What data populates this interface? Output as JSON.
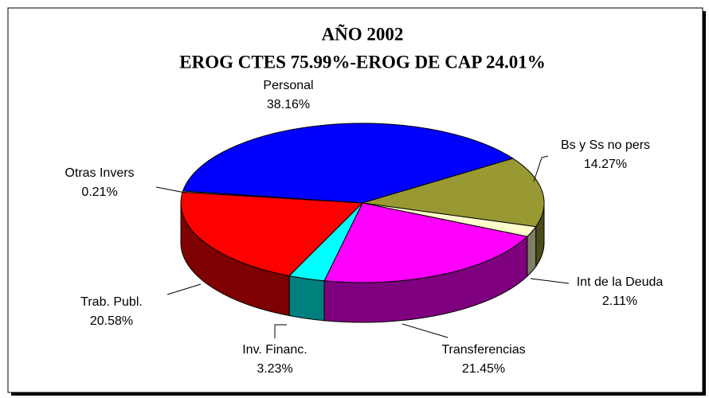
{
  "chart_data": {
    "type": "pie",
    "title": "AÑO 2002",
    "subtitle": "EROG CTES 75.99%-EROG DE CAP 24.01%",
    "categories": [
      "Personal",
      "Bs y Ss no pers",
      "Int de la Deuda",
      "Transferencias",
      "Inv. Financ.",
      "Trab. Publ.",
      "Otras Invers"
    ],
    "values": [
      38.16,
      14.27,
      2.11,
      21.45,
      3.23,
      20.58,
      0.21
    ],
    "value_labels": [
      "38.16%",
      "14.27%",
      "2.11%",
      "21.45%",
      "3.23%",
      "20.58%",
      "0.21%"
    ],
    "colors": [
      "#0000ff",
      "#999933",
      "#ffffcc",
      "#ff00ff",
      "#00ffff",
      "#ff0000",
      "#ccffff"
    ]
  }
}
